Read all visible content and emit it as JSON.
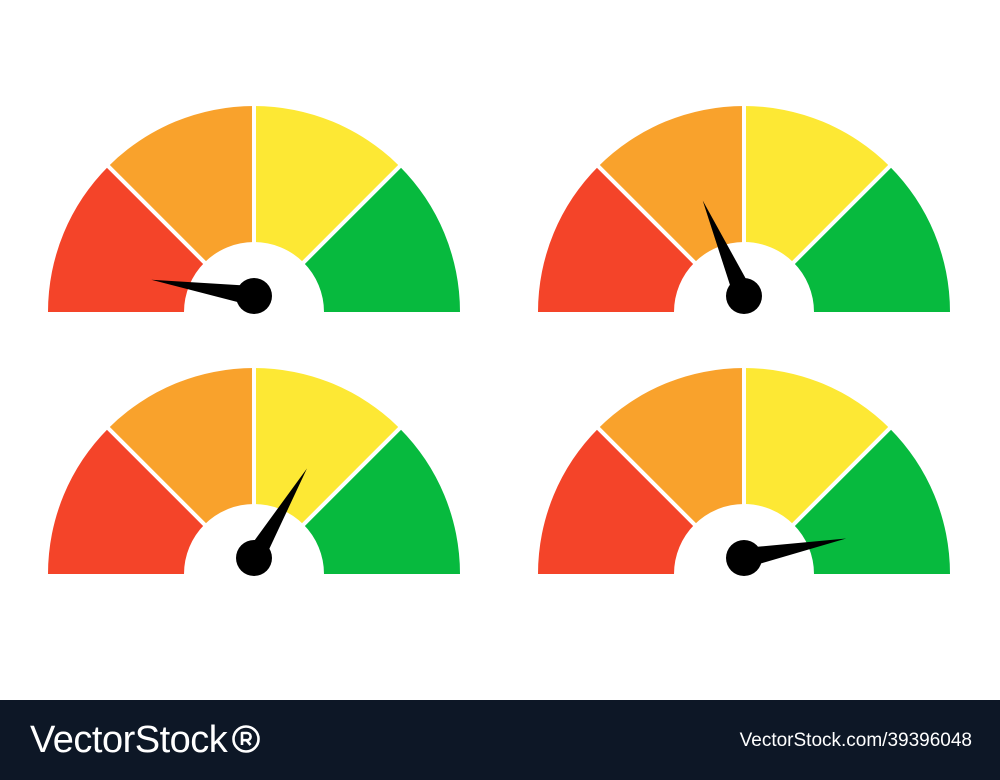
{
  "gauges": [
    {
      "id": "gauge-1",
      "needle_level": 0.05
    },
    {
      "id": "gauge-2",
      "needle_level": 0.37
    },
    {
      "id": "gauge-3",
      "needle_level": 0.67
    },
    {
      "id": "gauge-4",
      "needle_level": 0.94
    }
  ],
  "zone_colors": [
    "#f44429",
    "#f9a22c",
    "#fde834",
    "#07ba3e"
  ],
  "separator_color": "#ffffff",
  "needle_color": "#000000",
  "footer": {
    "background": "#0d1726",
    "brand": "VectorStock",
    "brand_mark": "registered-trademark-icon",
    "credit": "VectorStock.com/39396048"
  }
}
